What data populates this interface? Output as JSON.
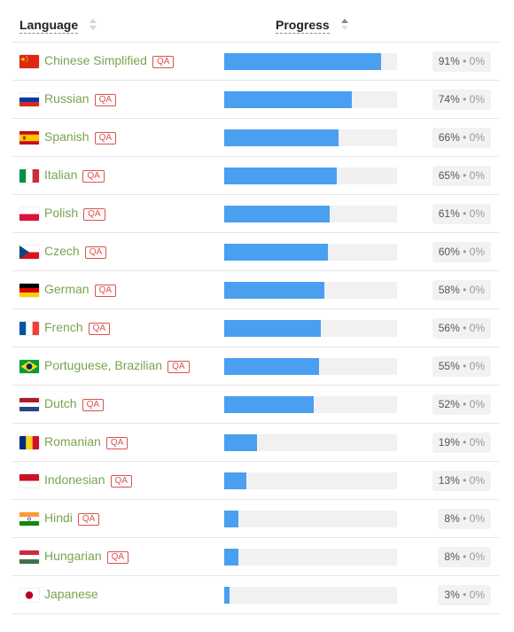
{
  "header": {
    "language_label": "Language",
    "progress_label": "Progress"
  },
  "qa_label": "QA",
  "bullet": "•",
  "colors": {
    "progress": "#4a9ff0",
    "language_link": "#7aa34f",
    "qa_badge": "#d9534f"
  },
  "languages": [
    {
      "name": "Chinese Simplified",
      "flag": "china-flag-icon",
      "qa": true,
      "progress": 91,
      "percent": "91%",
      "approved": "0%"
    },
    {
      "name": "Russian",
      "flag": "russia-flag-icon",
      "qa": true,
      "progress": 74,
      "percent": "74%",
      "approved": "0%"
    },
    {
      "name": "Spanish",
      "flag": "spain-flag-icon",
      "qa": true,
      "progress": 66,
      "percent": "66%",
      "approved": "0%"
    },
    {
      "name": "Italian",
      "flag": "italy-flag-icon",
      "qa": true,
      "progress": 65,
      "percent": "65%",
      "approved": "0%"
    },
    {
      "name": "Polish",
      "flag": "poland-flag-icon",
      "qa": true,
      "progress": 61,
      "percent": "61%",
      "approved": "0%"
    },
    {
      "name": "Czech",
      "flag": "czech-flag-icon",
      "qa": true,
      "progress": 60,
      "percent": "60%",
      "approved": "0%"
    },
    {
      "name": "German",
      "flag": "germany-flag-icon",
      "qa": true,
      "progress": 58,
      "percent": "58%",
      "approved": "0%"
    },
    {
      "name": "French",
      "flag": "france-flag-icon",
      "qa": true,
      "progress": 56,
      "percent": "56%",
      "approved": "0%"
    },
    {
      "name": "Portuguese, Brazilian",
      "flag": "brazil-flag-icon",
      "qa": true,
      "progress": 55,
      "percent": "55%",
      "approved": "0%"
    },
    {
      "name": "Dutch",
      "flag": "netherlands-flag-icon",
      "qa": true,
      "progress": 52,
      "percent": "52%",
      "approved": "0%"
    },
    {
      "name": "Romanian",
      "flag": "romania-flag-icon",
      "qa": true,
      "progress": 19,
      "percent": "19%",
      "approved": "0%"
    },
    {
      "name": "Indonesian",
      "flag": "indonesia-flag-icon",
      "qa": true,
      "progress": 13,
      "percent": "13%",
      "approved": "0%"
    },
    {
      "name": "Hindi",
      "flag": "india-flag-icon",
      "qa": true,
      "progress": 8,
      "percent": "8%",
      "approved": "0%"
    },
    {
      "name": "Hungarian",
      "flag": "hungary-flag-icon",
      "qa": true,
      "progress": 8,
      "percent": "8%",
      "approved": "0%"
    },
    {
      "name": "Japanese",
      "flag": "japan-flag-icon",
      "qa": false,
      "progress": 3,
      "percent": "3%",
      "approved": "0%"
    }
  ]
}
